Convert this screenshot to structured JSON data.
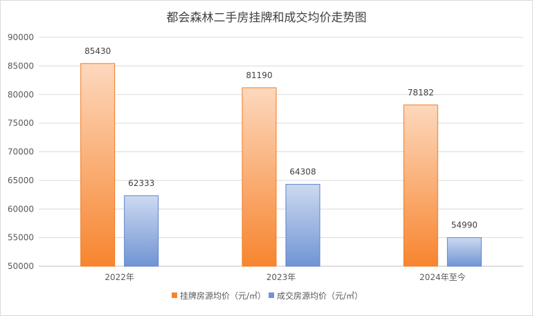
{
  "chart_data": {
    "type": "bar",
    "title": "都会森林二手房挂牌和成交均价走势图",
    "categories": [
      "2022年",
      "2023年",
      "2024年至今"
    ],
    "series": [
      {
        "name": "挂牌房源均价（元/㎡）",
        "values": [
          85430,
          81190,
          78182
        ],
        "color": "#f7852f"
      },
      {
        "name": "成交房源均价（元/㎡）",
        "values": [
          62333,
          64308,
          54990
        ],
        "color": "#7094d4"
      }
    ],
    "ylim": [
      50000,
      90000
    ],
    "yticks": [
      "50000",
      "55000",
      "60000",
      "65000",
      "70000",
      "75000",
      "80000",
      "85000",
      "90000"
    ],
    "grid": true,
    "legend": "bottom"
  }
}
